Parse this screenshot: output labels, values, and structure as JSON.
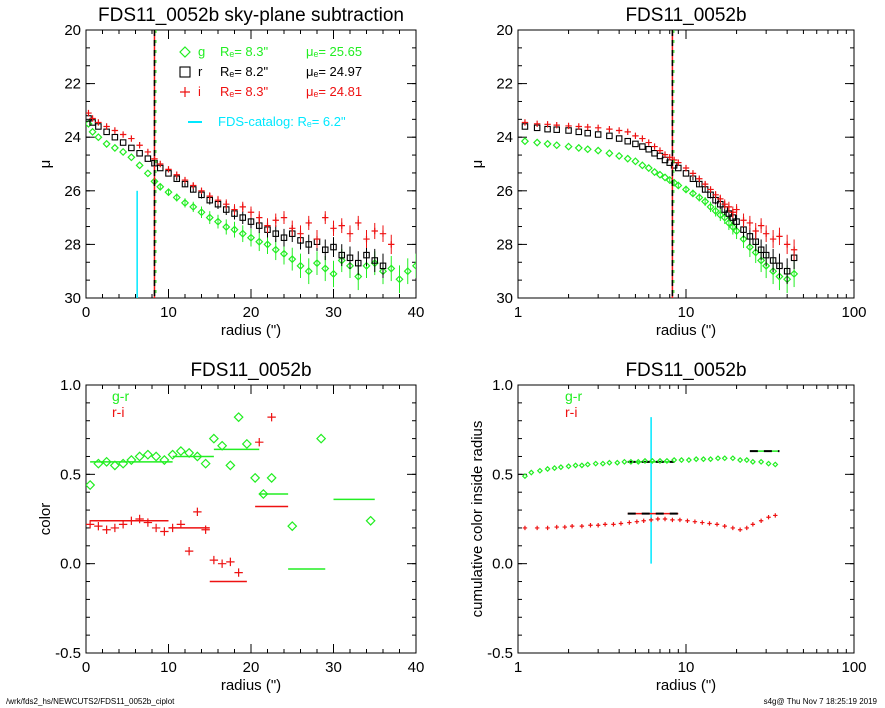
{
  "colors": {
    "g": "#22ee22",
    "r": "#000000",
    "i": "#ee1111",
    "catalog": "#00e8ff",
    "frame": "#000000"
  },
  "footer": {
    "left": "/wrk/fds2_hs/NEWCUTS2/FDS11_0052b_ciplot",
    "right": "s4g@  Thu Nov  7 18:25:19 2019"
  },
  "chart_data": [
    {
      "type": "scatter",
      "title": "FDS11_0052b sky-plane subtraction",
      "xlabel": "radius (\")",
      "ylabel": "μ",
      "xscale": "linear",
      "xlim": [
        0,
        40
      ],
      "ylim": [
        30,
        20
      ],
      "xticks": [
        0,
        10,
        20,
        30,
        40
      ],
      "xticklabels": [
        "0",
        "10",
        "20",
        "30",
        "40"
      ],
      "yticks": [
        20,
        22,
        24,
        26,
        28,
        30
      ],
      "yticklabels": [
        "20",
        "22",
        "24",
        "26",
        "28",
        "30"
      ],
      "grid": false,
      "legend_position": "top-right",
      "legend": [
        {
          "band": "g",
          "symbol": "diamond",
          "re": "Rₑ=  8.3\"",
          "mue": "μₑ= 25.65"
        },
        {
          "band": "r",
          "symbol": "square",
          "re": "Rₑ=  8.2\"",
          "mue": "μₑ= 24.97"
        },
        {
          "band": "i",
          "symbol": "plus",
          "re": "Rₑ=  8.3\"",
          "mue": "μₑ= 24.81"
        },
        {
          "band": "catalog",
          "symbol": "line",
          "text": "FDS-catalog: Rₑ=  6.2\""
        }
      ],
      "vlines": [
        {
          "x": 8.3,
          "style": "dashed"
        }
      ],
      "catalog_bar": {
        "x": 6.2,
        "y": [
          26.0,
          30.0
        ]
      },
      "series": [
        {
          "name": "g",
          "marker": "diamond",
          "x": [
            0.3,
            0.8,
            1.5,
            2.5,
            3.5,
            4.5,
            5.5,
            6.5,
            7.5,
            8.3,
            9,
            10,
            11,
            12,
            13,
            14,
            15,
            16,
            17,
            18,
            19,
            20,
            21,
            22,
            23,
            24,
            25,
            26,
            27,
            28,
            29,
            30,
            31,
            32,
            33,
            34,
            35,
            36,
            37,
            38,
            39,
            40
          ],
          "y": [
            23.5,
            23.8,
            24.0,
            24.25,
            24.4,
            24.55,
            24.75,
            25.05,
            25.35,
            25.65,
            25.85,
            26.05,
            26.25,
            26.45,
            26.6,
            26.8,
            27.0,
            27.15,
            27.35,
            27.45,
            27.6,
            27.75,
            27.9,
            28.0,
            28.2,
            28.35,
            28.55,
            28.8,
            29.0,
            28.7,
            28.9,
            29.1,
            28.6,
            28.8,
            29.2,
            28.8,
            28.7,
            29.0,
            28.9,
            29.3,
            29.0,
            28.8
          ]
        },
        {
          "name": "r",
          "marker": "square",
          "x": [
            0.3,
            0.8,
            1.5,
            2.5,
            3.5,
            4.5,
            5.5,
            6.5,
            7.5,
            8.3,
            9,
            10,
            11,
            12,
            13,
            14,
            15,
            16,
            17,
            18,
            19,
            20,
            21,
            22,
            23,
            24,
            25,
            26,
            27,
            28,
            29,
            30,
            31,
            32,
            33,
            34,
            35,
            36
          ],
          "y": [
            23.3,
            23.45,
            23.6,
            23.8,
            24.0,
            24.2,
            24.4,
            24.6,
            24.8,
            24.97,
            25.15,
            25.35,
            25.55,
            25.75,
            25.95,
            26.15,
            26.35,
            26.5,
            26.7,
            26.85,
            27.0,
            27.15,
            27.3,
            27.45,
            27.6,
            27.75,
            27.6,
            27.85,
            28.0,
            27.9,
            28.2,
            28.1,
            28.4,
            28.5,
            28.7,
            28.4,
            28.6,
            28.8
          ]
        },
        {
          "name": "i",
          "marker": "plus",
          "x": [
            0.3,
            0.8,
            1.5,
            2.5,
            3.5,
            4.5,
            5.5,
            6.5,
            7.5,
            8.3,
            9,
            10,
            11,
            12,
            13,
            14,
            15,
            16,
            17,
            18,
            19,
            20,
            21,
            22,
            23,
            24,
            25,
            26,
            27,
            28,
            29,
            30,
            31,
            32,
            33,
            34,
            35,
            36,
            37
          ],
          "y": [
            23.1,
            23.3,
            23.45,
            23.6,
            23.75,
            23.9,
            24.05,
            24.3,
            24.55,
            24.81,
            25.0,
            25.2,
            25.4,
            25.6,
            25.8,
            26.0,
            26.2,
            26.35,
            26.5,
            26.7,
            26.6,
            26.8,
            27.0,
            27.3,
            27.1,
            27.0,
            27.4,
            27.6,
            27.2,
            27.8,
            27.0,
            27.4,
            27.3,
            27.6,
            27.2,
            27.8,
            27.5,
            27.6,
            28.0
          ]
        }
      ]
    },
    {
      "type": "scatter",
      "title": "FDS11_0052b",
      "xlabel": "radius (\")",
      "ylabel": "μ",
      "xscale": "log",
      "xlim": [
        1,
        100
      ],
      "ylim": [
        30,
        20
      ],
      "xticks": [
        1,
        10,
        100
      ],
      "xticklabels": [
        "1",
        "10",
        "100"
      ],
      "yticks": [
        20,
        22,
        24,
        26,
        28,
        30
      ],
      "yticklabels": [
        "20",
        "22",
        "24",
        "26",
        "28",
        "30"
      ],
      "grid": false,
      "vlines": [
        {
          "x": 8.3,
          "style": "dashed"
        }
      ],
      "series": [
        {
          "name": "g",
          "marker": "diamond",
          "x": [
            1.1,
            1.3,
            1.5,
            1.7,
            2,
            2.3,
            2.6,
            3,
            3.5,
            4,
            4.5,
            5,
            5.5,
            6,
            6.5,
            7,
            7.5,
            8,
            8.5,
            9,
            10,
            11,
            12,
            13,
            14,
            15,
            16,
            17,
            18,
            19,
            20,
            22,
            24,
            26,
            28,
            30,
            33,
            36,
            40,
            44
          ],
          "y": [
            24.15,
            24.2,
            24.25,
            24.3,
            24.35,
            24.4,
            24.45,
            24.5,
            24.6,
            24.7,
            24.8,
            24.9,
            25.05,
            25.15,
            25.3,
            25.4,
            25.5,
            25.6,
            25.7,
            25.8,
            25.95,
            26.1,
            26.25,
            26.4,
            26.6,
            26.75,
            26.9,
            27.0,
            27.2,
            27.35,
            27.5,
            27.8,
            28.1,
            28.3,
            28.6,
            28.8,
            29.0,
            29.2,
            29.3,
            29.1
          ]
        },
        {
          "name": "r",
          "marker": "square",
          "x": [
            1.1,
            1.3,
            1.5,
            1.7,
            2,
            2.3,
            2.6,
            3,
            3.5,
            4,
            4.5,
            5,
            5.5,
            6,
            6.5,
            7,
            7.5,
            8,
            8.5,
            9,
            10,
            11,
            12,
            13,
            14,
            15,
            16,
            17,
            18,
            19,
            20,
            22,
            24,
            26,
            28,
            30,
            33,
            36,
            40,
            44
          ],
          "y": [
            23.6,
            23.65,
            23.7,
            23.72,
            23.75,
            23.8,
            23.85,
            23.9,
            23.95,
            24.05,
            24.15,
            24.25,
            24.35,
            24.45,
            24.6,
            24.7,
            24.85,
            24.95,
            25.05,
            25.15,
            25.35,
            25.55,
            25.75,
            25.95,
            26.15,
            26.35,
            26.5,
            26.7,
            26.85,
            27.0,
            27.15,
            27.45,
            27.7,
            27.9,
            28.2,
            28.4,
            28.6,
            28.8,
            29.0,
            28.5
          ]
        },
        {
          "name": "i",
          "marker": "plus",
          "x": [
            1.1,
            1.3,
            1.5,
            1.7,
            2,
            2.3,
            2.6,
            3,
            3.5,
            4,
            4.5,
            5,
            5.5,
            6,
            6.5,
            7,
            7.5,
            8,
            8.5,
            9,
            10,
            11,
            12,
            13,
            14,
            15,
            16,
            17,
            18,
            19,
            20,
            22,
            24,
            26,
            28,
            30,
            33,
            36,
            40,
            44
          ],
          "y": [
            23.45,
            23.5,
            23.52,
            23.55,
            23.58,
            23.6,
            23.62,
            23.65,
            23.7,
            23.75,
            23.8,
            23.95,
            24.05,
            24.2,
            24.35,
            24.5,
            24.65,
            24.75,
            24.85,
            24.95,
            25.15,
            25.35,
            25.55,
            25.75,
            25.95,
            26.15,
            26.3,
            26.5,
            26.6,
            26.8,
            26.7,
            27.1,
            27.2,
            27.5,
            27.3,
            27.6,
            27.8,
            27.7,
            28.0,
            28.2
          ]
        }
      ]
    },
    {
      "type": "scatter",
      "title": "FDS11_0052b",
      "xlabel": "radius (\")",
      "ylabel": "color",
      "xscale": "linear",
      "xlim": [
        0,
        40
      ],
      "ylim": [
        -0.5,
        1.0
      ],
      "xticks": [
        0,
        10,
        20,
        30,
        40
      ],
      "xticklabels": [
        "0",
        "10",
        "20",
        "30",
        "40"
      ],
      "yticks": [
        -0.5,
        0.0,
        0.5,
        1.0
      ],
      "yticklabels": [
        "-0.5",
        "0.0",
        "0.5",
        "1.0"
      ],
      "grid": false,
      "legend": [
        {
          "band": "g",
          "text": "g-r"
        },
        {
          "band": "i",
          "text": "r-i"
        }
      ],
      "series": [
        {
          "name": "g-r",
          "marker": "diamond",
          "x": [
            0.5,
            1.5,
            2.5,
            3.5,
            4.5,
            5.5,
            6.5,
            7.5,
            8.5,
            9.5,
            10.5,
            11.5,
            12.5,
            13.5,
            14.5,
            15.5,
            16.5,
            17.5,
            18.5,
            19.5,
            20.5,
            21.5,
            22.5,
            25,
            28.5,
            34.5
          ],
          "y": [
            0.44,
            0.56,
            0.57,
            0.55,
            0.56,
            0.58,
            0.6,
            0.61,
            0.6,
            0.58,
            0.61,
            0.63,
            0.62,
            0.6,
            0.56,
            0.7,
            0.66,
            0.55,
            0.82,
            0.67,
            0.48,
            0.39,
            0.48,
            0.21,
            0.7,
            0.24
          ]
        },
        {
          "name": "r-i",
          "marker": "plus",
          "x": [
            0.5,
            1.5,
            2.5,
            3.5,
            4.5,
            5.5,
            6.5,
            7.5,
            8.5,
            9.5,
            10.5,
            11.5,
            12.5,
            13.5,
            14.5,
            15.5,
            16.5,
            17.5,
            18.5,
            21,
            22.5
          ],
          "y": [
            0.22,
            0.21,
            0.19,
            0.2,
            0.22,
            0.24,
            0.25,
            0.23,
            0.2,
            0.18,
            0.2,
            0.22,
            0.07,
            0.29,
            0.19,
            0.02,
            0.0,
            0.01,
            -0.05,
            0.68,
            0.82
          ]
        }
      ],
      "segments": [
        {
          "series": "g-r",
          "x": [
            0.5,
            10.5
          ],
          "y": 0.57
        },
        {
          "series": "g-r",
          "x": [
            10.5,
            15.5
          ],
          "y": 0.6
        },
        {
          "series": "g-r",
          "x": [
            15.5,
            21
          ],
          "y": 0.64
        },
        {
          "series": "g-r",
          "x": [
            21,
            24.5
          ],
          "y": 0.39
        },
        {
          "series": "g-r",
          "x": [
            24.5,
            29
          ],
          "y": -0.03
        },
        {
          "series": "g-r",
          "x": [
            30,
            35
          ],
          "y": 0.36
        },
        {
          "series": "r-i",
          "x": [
            0.5,
            10
          ],
          "y": 0.24
        },
        {
          "series": "r-i",
          "x": [
            10,
            15
          ],
          "y": 0.2
        },
        {
          "series": "r-i",
          "x": [
            15,
            19.5
          ],
          "y": -0.1
        },
        {
          "series": "r-i",
          "x": [
            20.5,
            24.5
          ],
          "y": 0.32
        }
      ]
    },
    {
      "type": "scatter",
      "title": "FDS11_0052b",
      "xlabel": "radius (\")",
      "ylabel": "cumulative color inside radius",
      "xscale": "log",
      "xlim": [
        1,
        100
      ],
      "ylim": [
        -0.5,
        1.0
      ],
      "xticks": [
        1,
        10,
        100
      ],
      "xticklabels": [
        "1",
        "10",
        "100"
      ],
      "yticks": [
        -0.5,
        0.0,
        0.5,
        1.0
      ],
      "yticklabels": [
        "-0.5",
        "0.0",
        "0.5",
        "1.0"
      ],
      "grid": false,
      "legend": [
        {
          "band": "g",
          "text": "g-r"
        },
        {
          "band": "i",
          "text": "r-i"
        }
      ],
      "catalog_bar": {
        "x": 6.2,
        "y": [
          0.0,
          0.82
        ]
      },
      "series": [
        {
          "name": "g-r",
          "marker": "diamond",
          "x": [
            1.1,
            1.2,
            1.35,
            1.5,
            1.65,
            1.8,
            2,
            2.2,
            2.4,
            2.6,
            2.9,
            3.2,
            3.5,
            3.9,
            4.3,
            4.7,
            5.2,
            5.7,
            6.3,
            7,
            7.7,
            8.5,
            9.4,
            10.4,
            11.5,
            12.7,
            14,
            15.5,
            17,
            19,
            21,
            23,
            25,
            28,
            31,
            34
          ],
          "y": [
            0.49,
            0.51,
            0.52,
            0.53,
            0.535,
            0.54,
            0.545,
            0.55,
            0.55,
            0.555,
            0.56,
            0.56,
            0.565,
            0.565,
            0.57,
            0.57,
            0.57,
            0.575,
            0.575,
            0.575,
            0.575,
            0.58,
            0.58,
            0.58,
            0.585,
            0.585,
            0.585,
            0.59,
            0.59,
            0.59,
            0.58,
            0.58,
            0.57,
            0.57,
            0.56,
            0.555
          ]
        },
        {
          "name": "r-i",
          "marker": "plus",
          "x": [
            1.1,
            1.3,
            1.5,
            1.7,
            1.9,
            2.1,
            2.4,
            2.7,
            3,
            3.3,
            3.7,
            4.1,
            4.6,
            5.1,
            5.6,
            6.2,
            6.8,
            7.5,
            8.3,
            9.2,
            10.2,
            11.3,
            12.5,
            13.8,
            15.3,
            17,
            19,
            21,
            23,
            25,
            28,
            31,
            34
          ],
          "y": [
            0.2,
            0.2,
            0.2,
            0.205,
            0.205,
            0.21,
            0.21,
            0.215,
            0.215,
            0.22,
            0.22,
            0.225,
            0.23,
            0.235,
            0.24,
            0.245,
            0.25,
            0.25,
            0.245,
            0.245,
            0.24,
            0.235,
            0.23,
            0.225,
            0.22,
            0.21,
            0.2,
            0.19,
            0.2,
            0.22,
            0.24,
            0.26,
            0.27
          ]
        }
      ],
      "segments": [
        {
          "series": "g-r",
          "x": [
            4.5,
            8.5
          ],
          "y": 0.57,
          "dashed_overlay": true
        },
        {
          "series": "g-r",
          "x": [
            24,
            36
          ],
          "y": 0.63,
          "dashed_overlay": true
        },
        {
          "series": "r-i",
          "x": [
            4.5,
            9.0
          ],
          "y": 0.28,
          "dashed_overlay": true
        }
      ]
    }
  ]
}
